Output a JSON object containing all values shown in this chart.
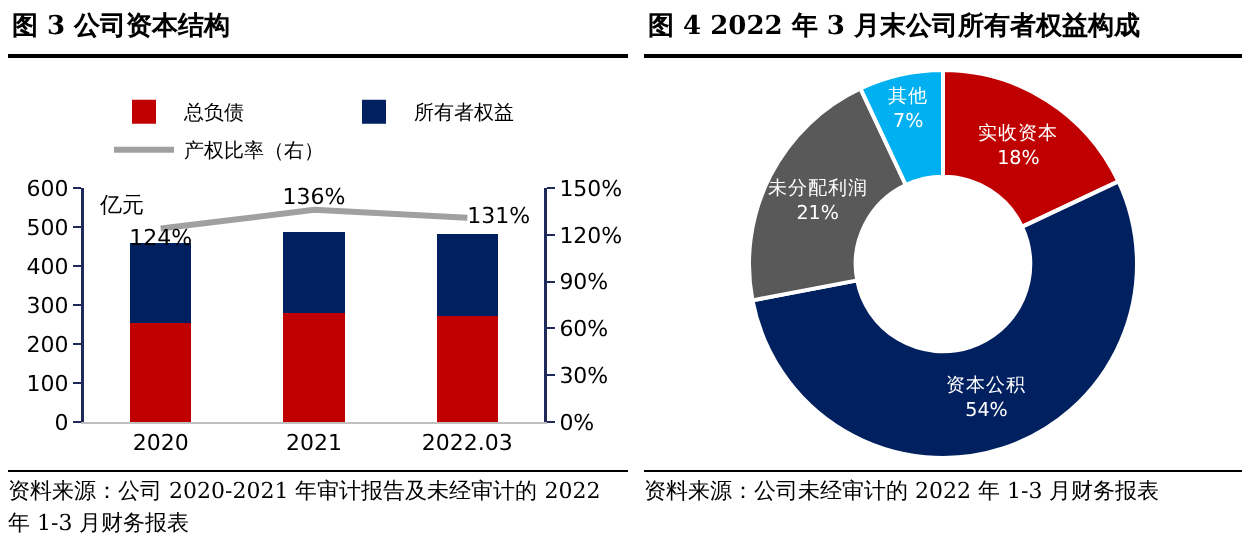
{
  "chart_data": [
    {
      "type": "bar",
      "title": "图 3 公司资本结构",
      "ylabel": "亿元",
      "categories": [
        "2020",
        "2021",
        "2022.03"
      ],
      "stacked": true,
      "legend": "top",
      "grid": false,
      "marker": "none",
      "series": [
        {
          "name": "总负债",
          "color": "#c00000",
          "values": [
            255,
            280,
            272
          ]
        },
        {
          "name": "所有者权益",
          "color": "#002060",
          "values": [
            205,
            207,
            209
          ]
        },
        {
          "name": "产权比率（右）",
          "type": "line",
          "axis": "y2",
          "color": "#a0a0a0",
          "values": [
            124,
            136,
            131
          ],
          "value_labels": [
            "124%",
            "136%",
            "131%"
          ]
        }
      ],
      "ylim": [
        0,
        600
      ],
      "yticks": [
        0,
        100,
        200,
        300,
        400,
        500,
        600
      ],
      "y2lim": [
        0,
        150
      ],
      "y2ticks": [
        {
          "value": 0,
          "label": "0%"
        },
        {
          "value": 30,
          "label": "30%"
        },
        {
          "value": 60,
          "label": "60%"
        },
        {
          "value": 90,
          "label": "90%"
        },
        {
          "value": 120,
          "label": "120%"
        },
        {
          "value": 150,
          "label": "150%"
        }
      ],
      "annotations": [
        "资料来源：公司 2020-2021 年审计报告及未经审计的 2022 年 1-3 月财务报表"
      ]
    },
    {
      "type": "donut",
      "title": "图 4 2022 年 3 月末公司所有者权益构成",
      "categories": [
        "实收资本",
        "资本公积",
        "未分配利润",
        "其他"
      ],
      "values": [
        18,
        54,
        21,
        7
      ],
      "colors": [
        "#c00000",
        "#002060",
        "#595959",
        "#00b0f0"
      ],
      "value_labels": [
        "18%",
        "54%",
        "21%",
        "7%"
      ],
      "legend": false,
      "annotations": [
        "资料来源：公司未经审计的 2022 年 1-3 月财务报表"
      ]
    }
  ]
}
